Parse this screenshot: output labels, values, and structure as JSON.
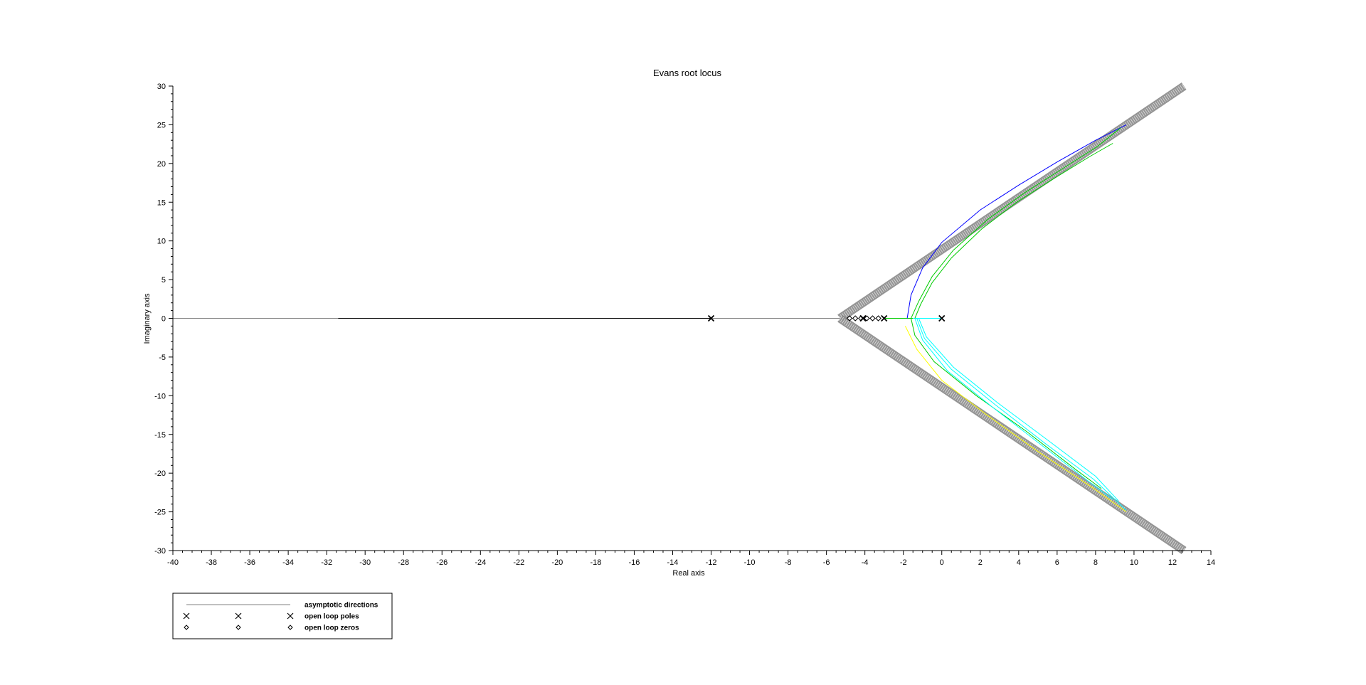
{
  "chart_data": {
    "type": "line",
    "title": "Evans root locus",
    "xlabel": "Real axis",
    "ylabel": "Imaginary axis",
    "xlim": [
      -40,
      14
    ],
    "ylim": [
      -30,
      30
    ],
    "xticks": [
      -40,
      -38,
      -36,
      -34,
      -32,
      -30,
      -28,
      -26,
      -24,
      -22,
      -20,
      -18,
      -16,
      -14,
      -12,
      -10,
      -8,
      -6,
      -4,
      -2,
      0,
      2,
      4,
      6,
      8,
      10,
      12,
      14
    ],
    "yticks": [
      -30,
      -25,
      -20,
      -15,
      -10,
      -5,
      0,
      5,
      10,
      15,
      20,
      25,
      30
    ],
    "grid": false,
    "legend_placement": "below-left",
    "asymptote_center": [
      -5.3,
      0
    ],
    "asymptote_ends": [
      [
        12.6,
        30
      ],
      [
        12.6,
        -30
      ]
    ],
    "open_loop_poles": [
      [
        -12,
        0
      ],
      [
        -4.1,
        0
      ],
      [
        -3,
        0
      ],
      [
        0,
        0
      ]
    ],
    "open_loop_zeros": [
      [
        -4.8,
        0
      ],
      [
        -4.5,
        0
      ],
      [
        -4.2,
        0
      ],
      [
        -3.9,
        0
      ],
      [
        -3.6,
        0
      ],
      [
        -3.3,
        0
      ]
    ],
    "series": [
      {
        "color": "#808080",
        "x": [
          -40,
          -5.3
        ],
        "y": [
          0,
          0
        ]
      },
      {
        "color": "#000000",
        "x": [
          -31.4,
          -12
        ],
        "y": [
          0,
          0
        ]
      },
      {
        "color": "#00cc00",
        "x": [
          -3.0,
          -1.5
        ],
        "y": [
          0,
          0
        ]
      },
      {
        "color": "#00ffff",
        "x": [
          -1.5,
          0
        ],
        "y": [
          0,
          0
        ]
      },
      {
        "color": "#0000ff",
        "x": [
          -4.1,
          -4.0
        ],
        "y": [
          0,
          0
        ]
      },
      {
        "color": "#0000ff",
        "x": [
          9.6,
          8.0,
          6.0,
          4.0,
          2.0,
          0.0,
          -1.0,
          -1.6,
          -1.8
        ],
        "y": [
          25.0,
          23.0,
          20.2,
          17.2,
          14.0,
          9.8,
          6.5,
          3.0,
          0.0
        ]
      },
      {
        "color": "#00cc00",
        "x": [
          9.3,
          8.1,
          6.2,
          4.3,
          2.4,
          0.6,
          -0.5,
          -1.2,
          -1.6,
          -1.4,
          -0.4,
          1.8,
          4.4,
          7.0,
          8.3
        ],
        "y": [
          24.6,
          22.2,
          19.2,
          16.2,
          12.8,
          8.8,
          5.4,
          2.2,
          0.0,
          -2.2,
          -5.6,
          -10.0,
          -14.6,
          -19.6,
          -22.0
        ]
      },
      {
        "color": "#00cc00",
        "x": [
          8.9,
          7.7,
          5.8,
          3.9,
          2.1,
          0.5,
          -0.5,
          -1.1,
          -1.4
        ],
        "y": [
          22.6,
          20.9,
          18.0,
          15.0,
          11.6,
          7.8,
          4.6,
          1.8,
          0.0
        ]
      },
      {
        "color": "#00ffff",
        "x": [
          -1.4,
          -1.0,
          0.3,
          2.6,
          5.2,
          7.6,
          8.9
        ],
        "y": [
          0.0,
          -2.8,
          -6.8,
          -11.4,
          -16.4,
          -21.0,
          -23.4
        ]
      },
      {
        "color": "#00ffff",
        "x": [
          -1.3,
          -0.9,
          0.5,
          2.8,
          5.4,
          7.9,
          9.6
        ],
        "y": [
          0.0,
          -2.6,
          -6.6,
          -11.2,
          -16.2,
          -20.8,
          -24.8
        ]
      },
      {
        "color": "#00ffff",
        "x": [
          -1.2,
          -0.8,
          0.6,
          2.9,
          5.6,
          8.0,
          9.2
        ],
        "y": [
          0.0,
          -2.4,
          -6.3,
          -10.9,
          -15.9,
          -20.4,
          -23.6
        ]
      },
      {
        "color": "#ffff00",
        "x": [
          -1.9,
          -1.3,
          0.0,
          2.3,
          5.0,
          7.8,
          9.6
        ],
        "y": [
          -1.0,
          -4.0,
          -8.0,
          -12.4,
          -17.2,
          -21.8,
          -25.0
        ]
      }
    ],
    "legend": [
      {
        "marker": "line",
        "label": "asymptotic directions"
      },
      {
        "marker": "x",
        "label": "open loop poles"
      },
      {
        "marker": "diamond",
        "label": "open loop zeros"
      }
    ]
  }
}
